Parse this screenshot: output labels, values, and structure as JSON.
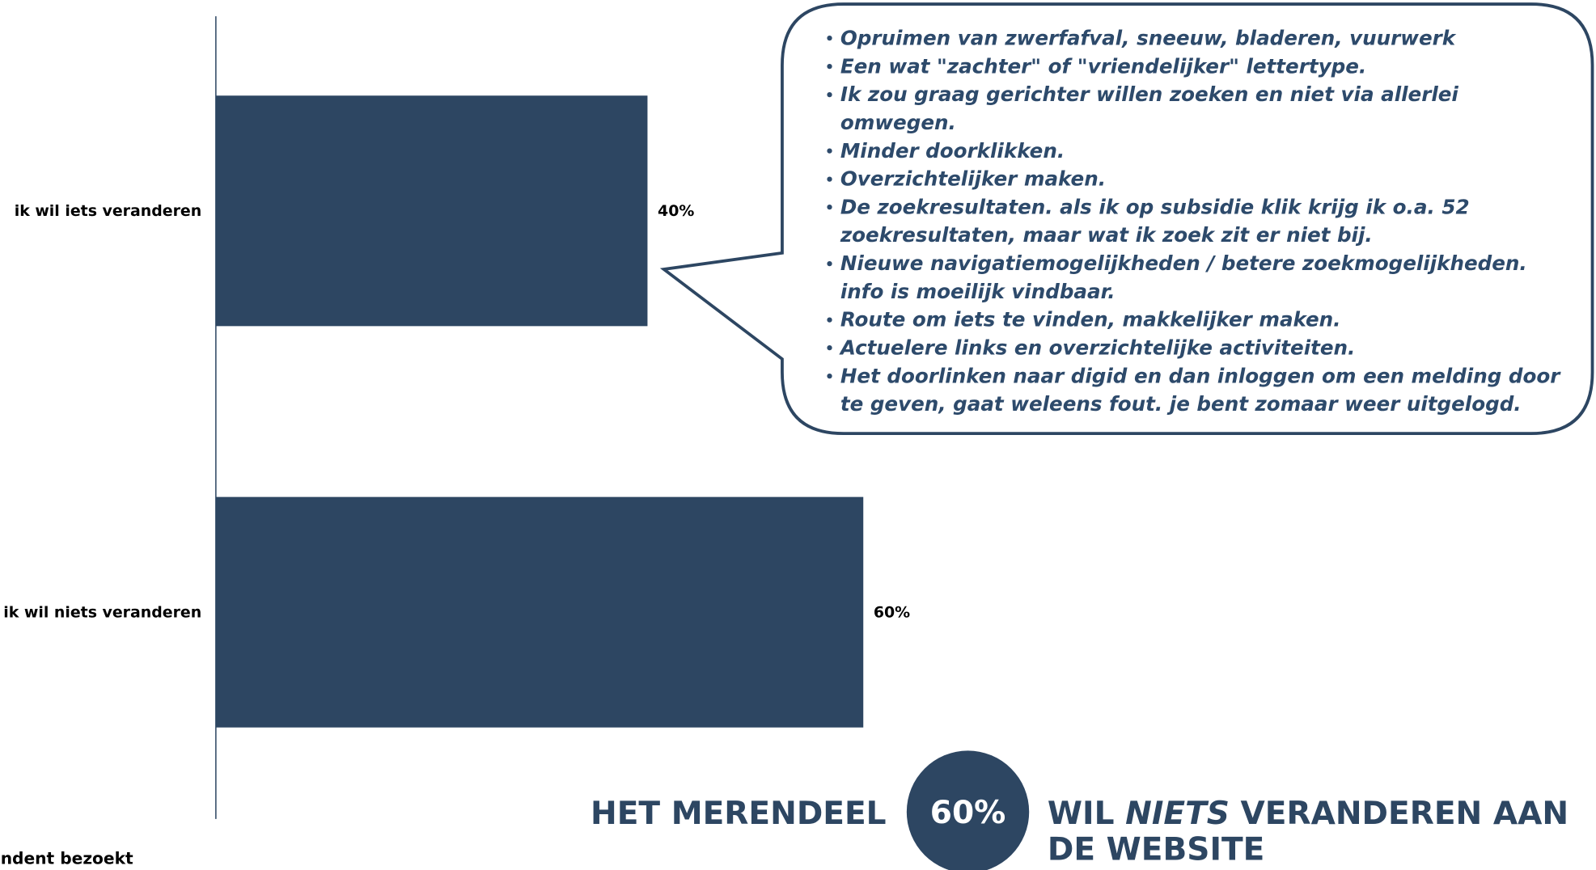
{
  "chart_data": {
    "type": "barh",
    "categories": [
      "ik wil iets veranderen",
      "ik wil niets veranderen"
    ],
    "values": [
      40,
      60
    ],
    "value_labels": [
      "40%",
      "60%"
    ],
    "color": "#2d4662",
    "xlim": [
      0,
      100
    ],
    "callout_items": [
      [
        "Opruimen van zwerfafval, sneeuw, bladeren, vuurwerk"
      ],
      [
        "Een wat \"zachter\" of \"vriendelijker\" lettertype."
      ],
      [
        "Ik zou graag gerichter willen zoeken en niet via allerlei",
        "omwegen."
      ],
      [
        "Minder doorklikken."
      ],
      [
        "Overzichtelijker maken."
      ],
      [
        "De zoekresultaten. als ik op subsidie klik krijg ik o.a. 52",
        "zoekresultaten, maar wat ik zoek zit er niet bij."
      ],
      [
        "Nieuwe navigatiemogelijkheden / betere zoekmogelijkheden.",
        "info is moeilijk vindbaar."
      ],
      [
        "Route om iets te vinden, makkelijker maken."
      ],
      [
        "Actuelere links en overzichtelijke activiteiten."
      ],
      [
        "Het doorlinken naar digid en dan inloggen om een melding door",
        "te geven, gaat weleens fout. je bent zomaar weer uitgelogd."
      ]
    ],
    "headline": {
      "left": "HET MERENDEEL",
      "circle": "60%",
      "right_a": "WIL ",
      "right_em": "NIETS",
      "right_b": " VERANDEREN AAN",
      "right_line2": "DE WEBSITE"
    },
    "footnote": "ndent bezoekt"
  }
}
